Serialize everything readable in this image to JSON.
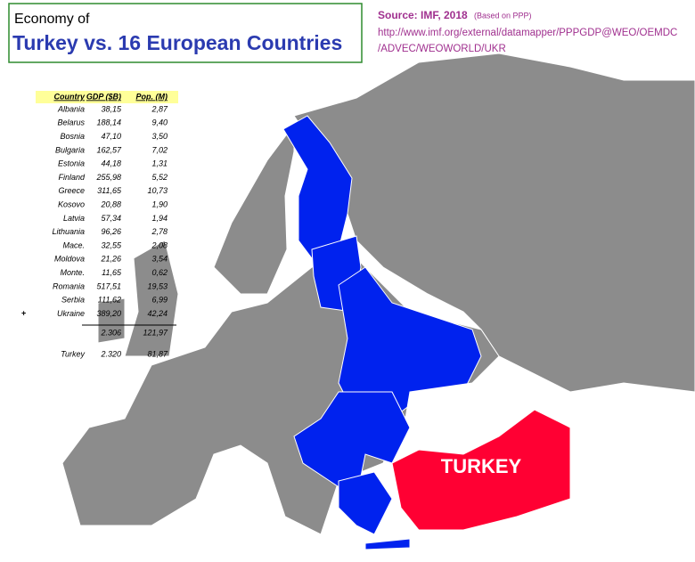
{
  "title": {
    "line1": "Economy of",
    "line2": "Turkey vs. 16 European Countries"
  },
  "source": {
    "label": "Source: IMF, 2018",
    "note": "(Based on PPP)",
    "url_line1": "http://www.imf.org/external/datamapper/PPPGDP@WEO/OEMDC",
    "url_line2": "/ADVEC/WEOWORLD/UKR"
  },
  "table": {
    "header": [
      "Country",
      "GDP ($B)",
      "Pop. (M)"
    ],
    "rows": [
      [
        "Albania",
        "38,15",
        "2,87"
      ],
      [
        "Belarus",
        "188,14",
        "9,40"
      ],
      [
        "Bosnia",
        "47,10",
        "3,50"
      ],
      [
        "Bulgaria",
        "162,57",
        "7,02"
      ],
      [
        "Estonia",
        "44,18",
        "1,31"
      ],
      [
        "Finland",
        "255,98",
        "5,52"
      ],
      [
        "Greece",
        "311,65",
        "10,73"
      ],
      [
        "Kosovo",
        "20,88",
        "1,90"
      ],
      [
        "Latvia",
        "57,34",
        "1,94"
      ],
      [
        "Lithuania",
        "96,26",
        "2,78"
      ],
      [
        "Mace.",
        "32,55",
        "2,08"
      ],
      [
        "Moldova",
        "21,26",
        "3,54"
      ],
      [
        "Monte.",
        "11,65",
        "0,62"
      ],
      [
        "Romania",
        "517,51",
        "19,53"
      ],
      [
        "Serbia",
        "111,62",
        "6,99"
      ],
      [
        "Ukraine",
        "389,20",
        "42,24"
      ]
    ],
    "plus": "+",
    "total": [
      "2.306",
      "121,97"
    ],
    "turkey": [
      "Turkey",
      "2.320",
      "81,87"
    ]
  },
  "map_label": "TURKEY"
}
